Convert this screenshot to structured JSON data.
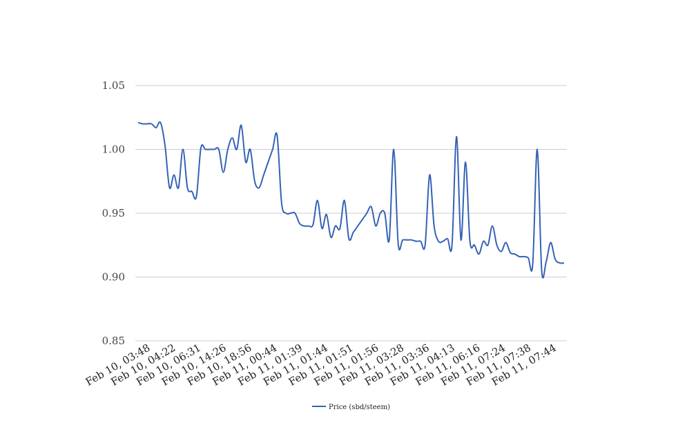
{
  "chart_data": {
    "type": "line",
    "title": "",
    "xlabel": "",
    "ylabel": "",
    "ylim": [
      0.85,
      1.05
    ],
    "y_ticks": [
      "0.85",
      "0.90",
      "0.95",
      "1.00",
      "1.05"
    ],
    "x_tick_labels": [
      "Feb 10, 03:48",
      "Feb 10, 04:22",
      "Feb 10, 06:31",
      "Feb 10, 14:26",
      "Feb 10, 18:56",
      "Feb 11, 00:44",
      "Feb 11, 01:39",
      "Feb 11, 01:44",
      "Feb 11, 01:51",
      "Feb 11, 01:56",
      "Feb 11, 03:28",
      "Feb 11, 03:36",
      "Feb 11, 04:13",
      "Feb 11, 06:16",
      "Feb 11, 07:24",
      "Feb 11, 07:38",
      "Feb 11, 07:44"
    ],
    "grid": true,
    "legend_position": "bottom",
    "series": [
      {
        "name": "Price (sbd/steem)",
        "color": "#3461b5",
        "values": [
          1.021,
          1.02,
          1.02,
          1.02,
          1.017,
          1.021,
          1.003,
          0.97,
          0.98,
          0.97,
          1.0,
          0.97,
          0.967,
          0.963,
          1.001,
          1.0,
          1.0,
          1.0,
          1.0,
          0.982,
          1.0,
          1.009,
          1.0,
          1.019,
          0.99,
          1.0,
          0.975,
          0.97,
          0.98,
          0.99,
          1.0,
          1.011,
          0.958,
          0.95,
          0.95,
          0.95,
          0.942,
          0.94,
          0.94,
          0.941,
          0.96,
          0.938,
          0.949,
          0.931,
          0.94,
          0.938,
          0.96,
          0.93,
          0.935,
          0.94,
          0.945,
          0.95,
          0.955,
          0.94,
          0.95,
          0.95,
          0.929,
          1.0,
          0.926,
          0.929,
          0.929,
          0.929,
          0.928,
          0.928,
          0.925,
          0.98,
          0.94,
          0.928,
          0.928,
          0.93,
          0.925,
          1.01,
          0.929,
          0.99,
          0.928,
          0.925,
          0.918,
          0.928,
          0.925,
          0.94,
          0.925,
          0.92,
          0.927,
          0.919,
          0.918,
          0.916,
          0.916,
          0.915,
          0.91,
          1.0,
          0.905,
          0.912,
          0.927,
          0.914,
          0.911,
          0.911
        ]
      }
    ]
  }
}
